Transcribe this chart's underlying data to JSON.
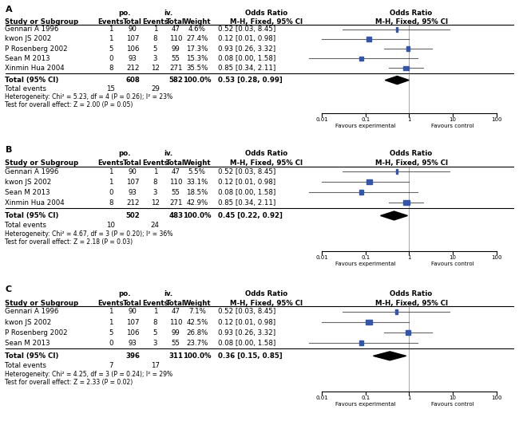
{
  "panels": [
    {
      "label": "A",
      "studies": [
        {
          "name": "Gennari A 1996",
          "po_events": 1,
          "po_total": 90,
          "iv_events": 1,
          "iv_total": 47,
          "weight": "4.6%",
          "or_text": "0.52 [0.03, 8.45]",
          "or": 0.52,
          "ci_lo": 0.03,
          "ci_hi": 8.45
        },
        {
          "name": "kwon JS 2002",
          "po_events": 1,
          "po_total": 107,
          "iv_events": 8,
          "iv_total": 110,
          "weight": "27.4%",
          "or_text": "0.12 [0.01, 0.98]",
          "or": 0.12,
          "ci_lo": 0.01,
          "ci_hi": 0.98
        },
        {
          "name": "P Rosenberg 2002",
          "po_events": 5,
          "po_total": 106,
          "iv_events": 5,
          "iv_total": 99,
          "weight": "17.3%",
          "or_text": "0.93 [0.26, 3.32]",
          "or": 0.93,
          "ci_lo": 0.26,
          "ci_hi": 3.32
        },
        {
          "name": "Sean M 2013",
          "po_events": 0,
          "po_total": 93,
          "iv_events": 3,
          "iv_total": 55,
          "weight": "15.3%",
          "or_text": "0.08 [0.00, 1.58]",
          "or": 0.08,
          "ci_lo": 0.001,
          "ci_hi": 1.58
        },
        {
          "name": "Xinmin Hua 2004",
          "po_events": 8,
          "po_total": 212,
          "iv_events": 12,
          "iv_total": 271,
          "weight": "35.5%",
          "or_text": "0.85 [0.34, 2.11]",
          "or": 0.85,
          "ci_lo": 0.34,
          "ci_hi": 2.11
        }
      ],
      "total_po": 608,
      "total_iv": 582,
      "total_po_events": 15,
      "total_iv_events": 29,
      "total_or": 0.53,
      "total_ci_lo": 0.28,
      "total_ci_hi": 0.99,
      "total_text": "0.53 [0.28, 0.99]",
      "heterogeneity": "Heterogeneity: Chi² = 5.23, df = 4 (P = 0.26); I² = 23%",
      "overall": "Test for overall effect: Z = 2.00 (P = 0.05)"
    },
    {
      "label": "B",
      "studies": [
        {
          "name": "Gennari A 1996",
          "po_events": 1,
          "po_total": 90,
          "iv_events": 1,
          "iv_total": 47,
          "weight": "5.5%",
          "or_text": "0.52 [0.03, 8.45]",
          "or": 0.52,
          "ci_lo": 0.03,
          "ci_hi": 8.45
        },
        {
          "name": "kwon JS 2002",
          "po_events": 1,
          "po_total": 107,
          "iv_events": 8,
          "iv_total": 110,
          "weight": "33.1%",
          "or_text": "0.12 [0.01, 0.98]",
          "or": 0.12,
          "ci_lo": 0.01,
          "ci_hi": 0.98
        },
        {
          "name": "Sean M 2013",
          "po_events": 0,
          "po_total": 93,
          "iv_events": 3,
          "iv_total": 55,
          "weight": "18.5%",
          "or_text": "0.08 [0.00, 1.58]",
          "or": 0.08,
          "ci_lo": 0.001,
          "ci_hi": 1.58
        },
        {
          "name": "Xinmin Hua 2004",
          "po_events": 8,
          "po_total": 212,
          "iv_events": 12,
          "iv_total": 271,
          "weight": "42.9%",
          "or_text": "0.85 [0.34, 2.11]",
          "or": 0.85,
          "ci_lo": 0.34,
          "ci_hi": 2.11
        }
      ],
      "total_po": 502,
      "total_iv": 483,
      "total_po_events": 10,
      "total_iv_events": 24,
      "total_or": 0.45,
      "total_ci_lo": 0.22,
      "total_ci_hi": 0.92,
      "total_text": "0.45 [0.22, 0.92]",
      "heterogeneity": "Heterogeneity: Chi² = 4.67, df = 3 (P = 0.20); I² = 36%",
      "overall": "Test for overall effect: Z = 2.18 (P = 0.03)"
    },
    {
      "label": "C",
      "studies": [
        {
          "name": "Gennari A 1996",
          "po_events": 1,
          "po_total": 90,
          "iv_events": 1,
          "iv_total": 47,
          "weight": "7.1%",
          "or_text": "0.52 [0.03, 8.45]",
          "or": 0.52,
          "ci_lo": 0.03,
          "ci_hi": 8.45
        },
        {
          "name": "kwon JS 2002",
          "po_events": 1,
          "po_total": 107,
          "iv_events": 8,
          "iv_total": 110,
          "weight": "42.5%",
          "or_text": "0.12 [0.01, 0.98]",
          "or": 0.12,
          "ci_lo": 0.01,
          "ci_hi": 0.98
        },
        {
          "name": "P Rosenberg 2002",
          "po_events": 5,
          "po_total": 106,
          "iv_events": 5,
          "iv_total": 99,
          "weight": "26.8%",
          "or_text": "0.93 [0.26, 3.32]",
          "or": 0.93,
          "ci_lo": 0.26,
          "ci_hi": 3.32
        },
        {
          "name": "Sean M 2013",
          "po_events": 0,
          "po_total": 93,
          "iv_events": 3,
          "iv_total": 55,
          "weight": "23.7%",
          "or_text": "0.08 [0.00, 1.58]",
          "or": 0.08,
          "ci_lo": 0.001,
          "ci_hi": 1.58
        }
      ],
      "total_po": 396,
      "total_iv": 311,
      "total_po_events": 7,
      "total_iv_events": 17,
      "total_or": 0.36,
      "total_ci_lo": 0.15,
      "total_ci_hi": 0.85,
      "total_text": "0.36 [0.15, 0.85]",
      "heterogeneity": "Heterogeneity: Chi² = 4.25, df = 3 (P = 0.24); I² = 29%",
      "overall": "Test for overall effect: Z = 2.33 (P = 0.02)"
    }
  ],
  "study_color": "#3355aa",
  "line_color": "#666666",
  "favours_exp": "Favours experimental",
  "favours_ctrl": "Favours control"
}
